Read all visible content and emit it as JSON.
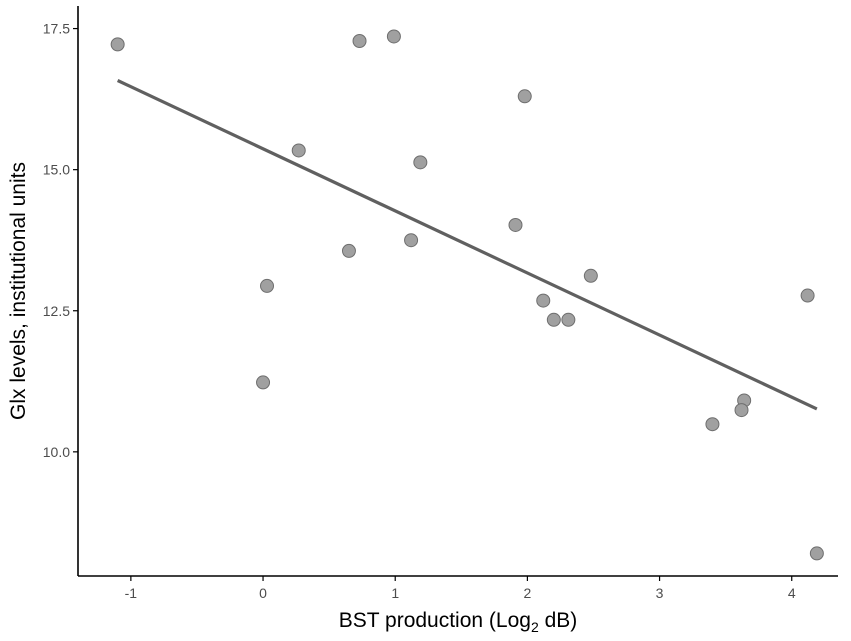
{
  "chart_data": {
    "type": "scatter",
    "xlabel": "BST production (Log",
    "xlabel_sub": "2",
    "xlabel_end": " dB)",
    "ylabel": "Glx levels, institutional units",
    "xlim": [
      -1.4,
      4.35
    ],
    "ylim": [
      7.8,
      17.9
    ],
    "xticks": [
      -1,
      0,
      1,
      2,
      3,
      4
    ],
    "xtick_labels": [
      "-1",
      "0",
      "1",
      "2",
      "3",
      "4"
    ],
    "yticks": [
      10.0,
      12.5,
      15.0,
      17.5
    ],
    "ytick_labels": [
      "10.0",
      "12.5",
      "15.0",
      "17.5"
    ],
    "grid": false,
    "series": [
      {
        "points": [
          {
            "x": -1.1,
            "y": 17.22
          },
          {
            "x": 0.73,
            "y": 17.28
          },
          {
            "x": 0.99,
            "y": 17.36
          },
          {
            "x": 1.98,
            "y": 16.3
          },
          {
            "x": 0.27,
            "y": 15.34
          },
          {
            "x": 1.19,
            "y": 15.13
          },
          {
            "x": 1.91,
            "y": 14.02
          },
          {
            "x": 1.12,
            "y": 13.75
          },
          {
            "x": 0.65,
            "y": 13.56
          },
          {
            "x": 2.48,
            "y": 13.12
          },
          {
            "x": 0.03,
            "y": 12.94
          },
          {
            "x": 2.12,
            "y": 12.68
          },
          {
            "x": 2.2,
            "y": 12.34
          },
          {
            "x": 2.31,
            "y": 12.34
          },
          {
            "x": 4.12,
            "y": 12.77
          },
          {
            "x": 0.0,
            "y": 11.23
          },
          {
            "x": 3.64,
            "y": 10.91
          },
          {
            "x": 3.62,
            "y": 10.74
          },
          {
            "x": 3.4,
            "y": 10.49
          },
          {
            "x": 4.19,
            "y": 8.2
          }
        ]
      }
    ],
    "fit_line": {
      "x": [
        -1.1,
        4.19
      ],
      "y": [
        16.58,
        10.76
      ]
    }
  }
}
